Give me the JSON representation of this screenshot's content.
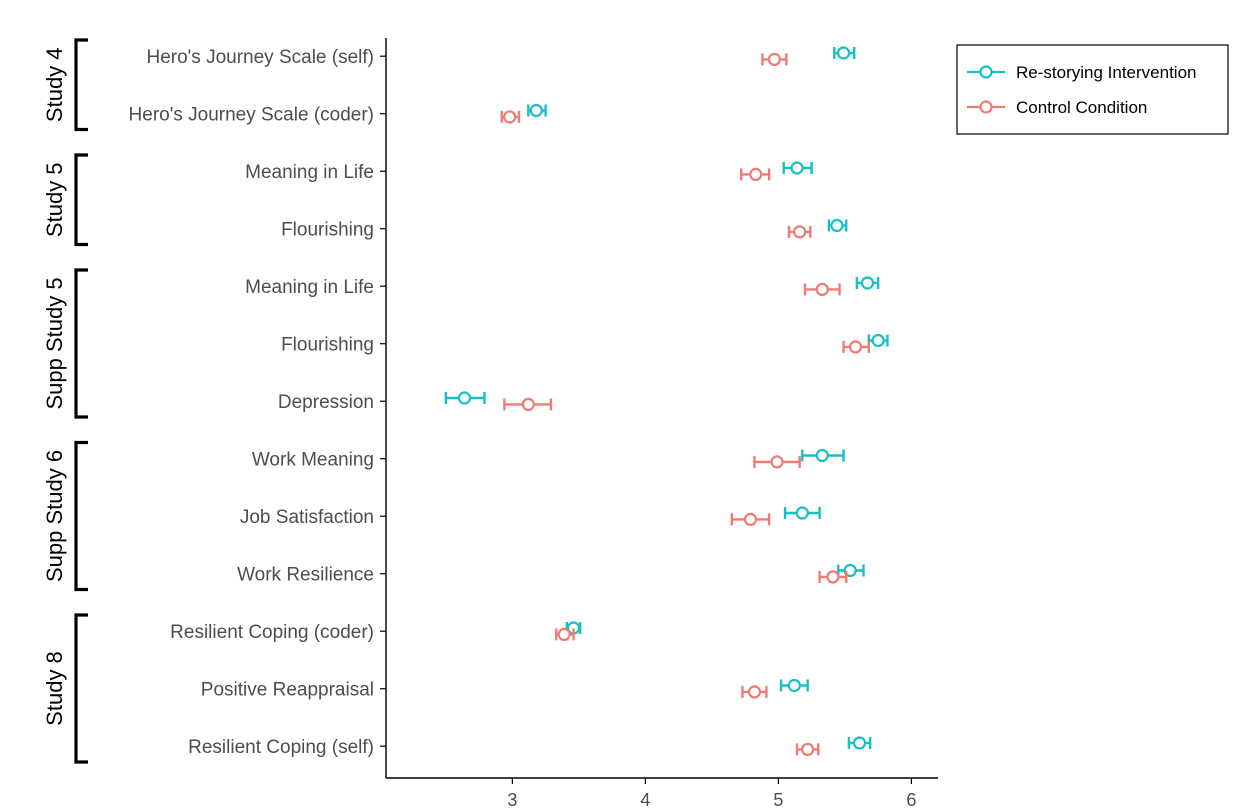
{
  "chart_data": {
    "type": "scatter",
    "orientation": "horizontal",
    "xlim": [
      2.05,
      6.2
    ],
    "x_ticks": [
      3,
      4,
      5,
      6
    ],
    "xlabel": "",
    "ylabel": "",
    "grid": false,
    "legend_position": "top-right",
    "categories": [
      "Hero's Journey Scale (self)",
      "Hero's Journey Scale (coder)",
      "Meaning in Life",
      "Flourishing",
      "Meaning in Life",
      "Flourishing",
      "Depression",
      "Work Meaning",
      "Job Satisfaction",
      "Work Resilience",
      "Resilient Coping (coder)",
      "Positive Reappraisal",
      "Resilient Coping (self)"
    ],
    "groups": [
      {
        "label": "Study 4",
        "start": 0,
        "end": 1
      },
      {
        "label": "Study 5",
        "start": 2,
        "end": 3
      },
      {
        "label": "Supp Study 5",
        "start": 4,
        "end": 6
      },
      {
        "label": "Supp Study 6",
        "start": 7,
        "end": 9
      },
      {
        "label": "Study 8",
        "start": 10,
        "end": 12
      }
    ],
    "series": [
      {
        "name": "Re-storying Intervention",
        "color": "#19BFC4",
        "values": [
          5.49,
          3.18,
          5.14,
          5.44,
          5.67,
          5.75,
          2.64,
          5.33,
          5.18,
          5.54,
          3.46,
          5.12,
          5.61
        ],
        "lower": [
          5.42,
          3.12,
          5.04,
          5.38,
          5.59,
          5.68,
          2.5,
          5.18,
          5.05,
          5.45,
          3.41,
          5.02,
          5.53
        ],
        "upper": [
          5.57,
          3.25,
          5.25,
          5.51,
          5.75,
          5.82,
          2.79,
          5.49,
          5.31,
          5.64,
          3.51,
          5.22,
          5.69
        ]
      },
      {
        "name": "Control Condition",
        "color": "#F07B75",
        "values": [
          4.97,
          2.98,
          4.83,
          5.16,
          5.33,
          5.58,
          3.12,
          4.99,
          4.79,
          5.41,
          3.39,
          4.82,
          5.22
        ],
        "lower": [
          4.88,
          2.92,
          4.72,
          5.08,
          5.2,
          5.49,
          2.94,
          4.82,
          4.65,
          5.31,
          3.33,
          4.73,
          5.14
        ],
        "upper": [
          5.06,
          3.05,
          4.93,
          5.24,
          5.46,
          5.68,
          3.29,
          5.16,
          4.93,
          5.51,
          3.46,
          4.91,
          5.3
        ]
      }
    ]
  }
}
